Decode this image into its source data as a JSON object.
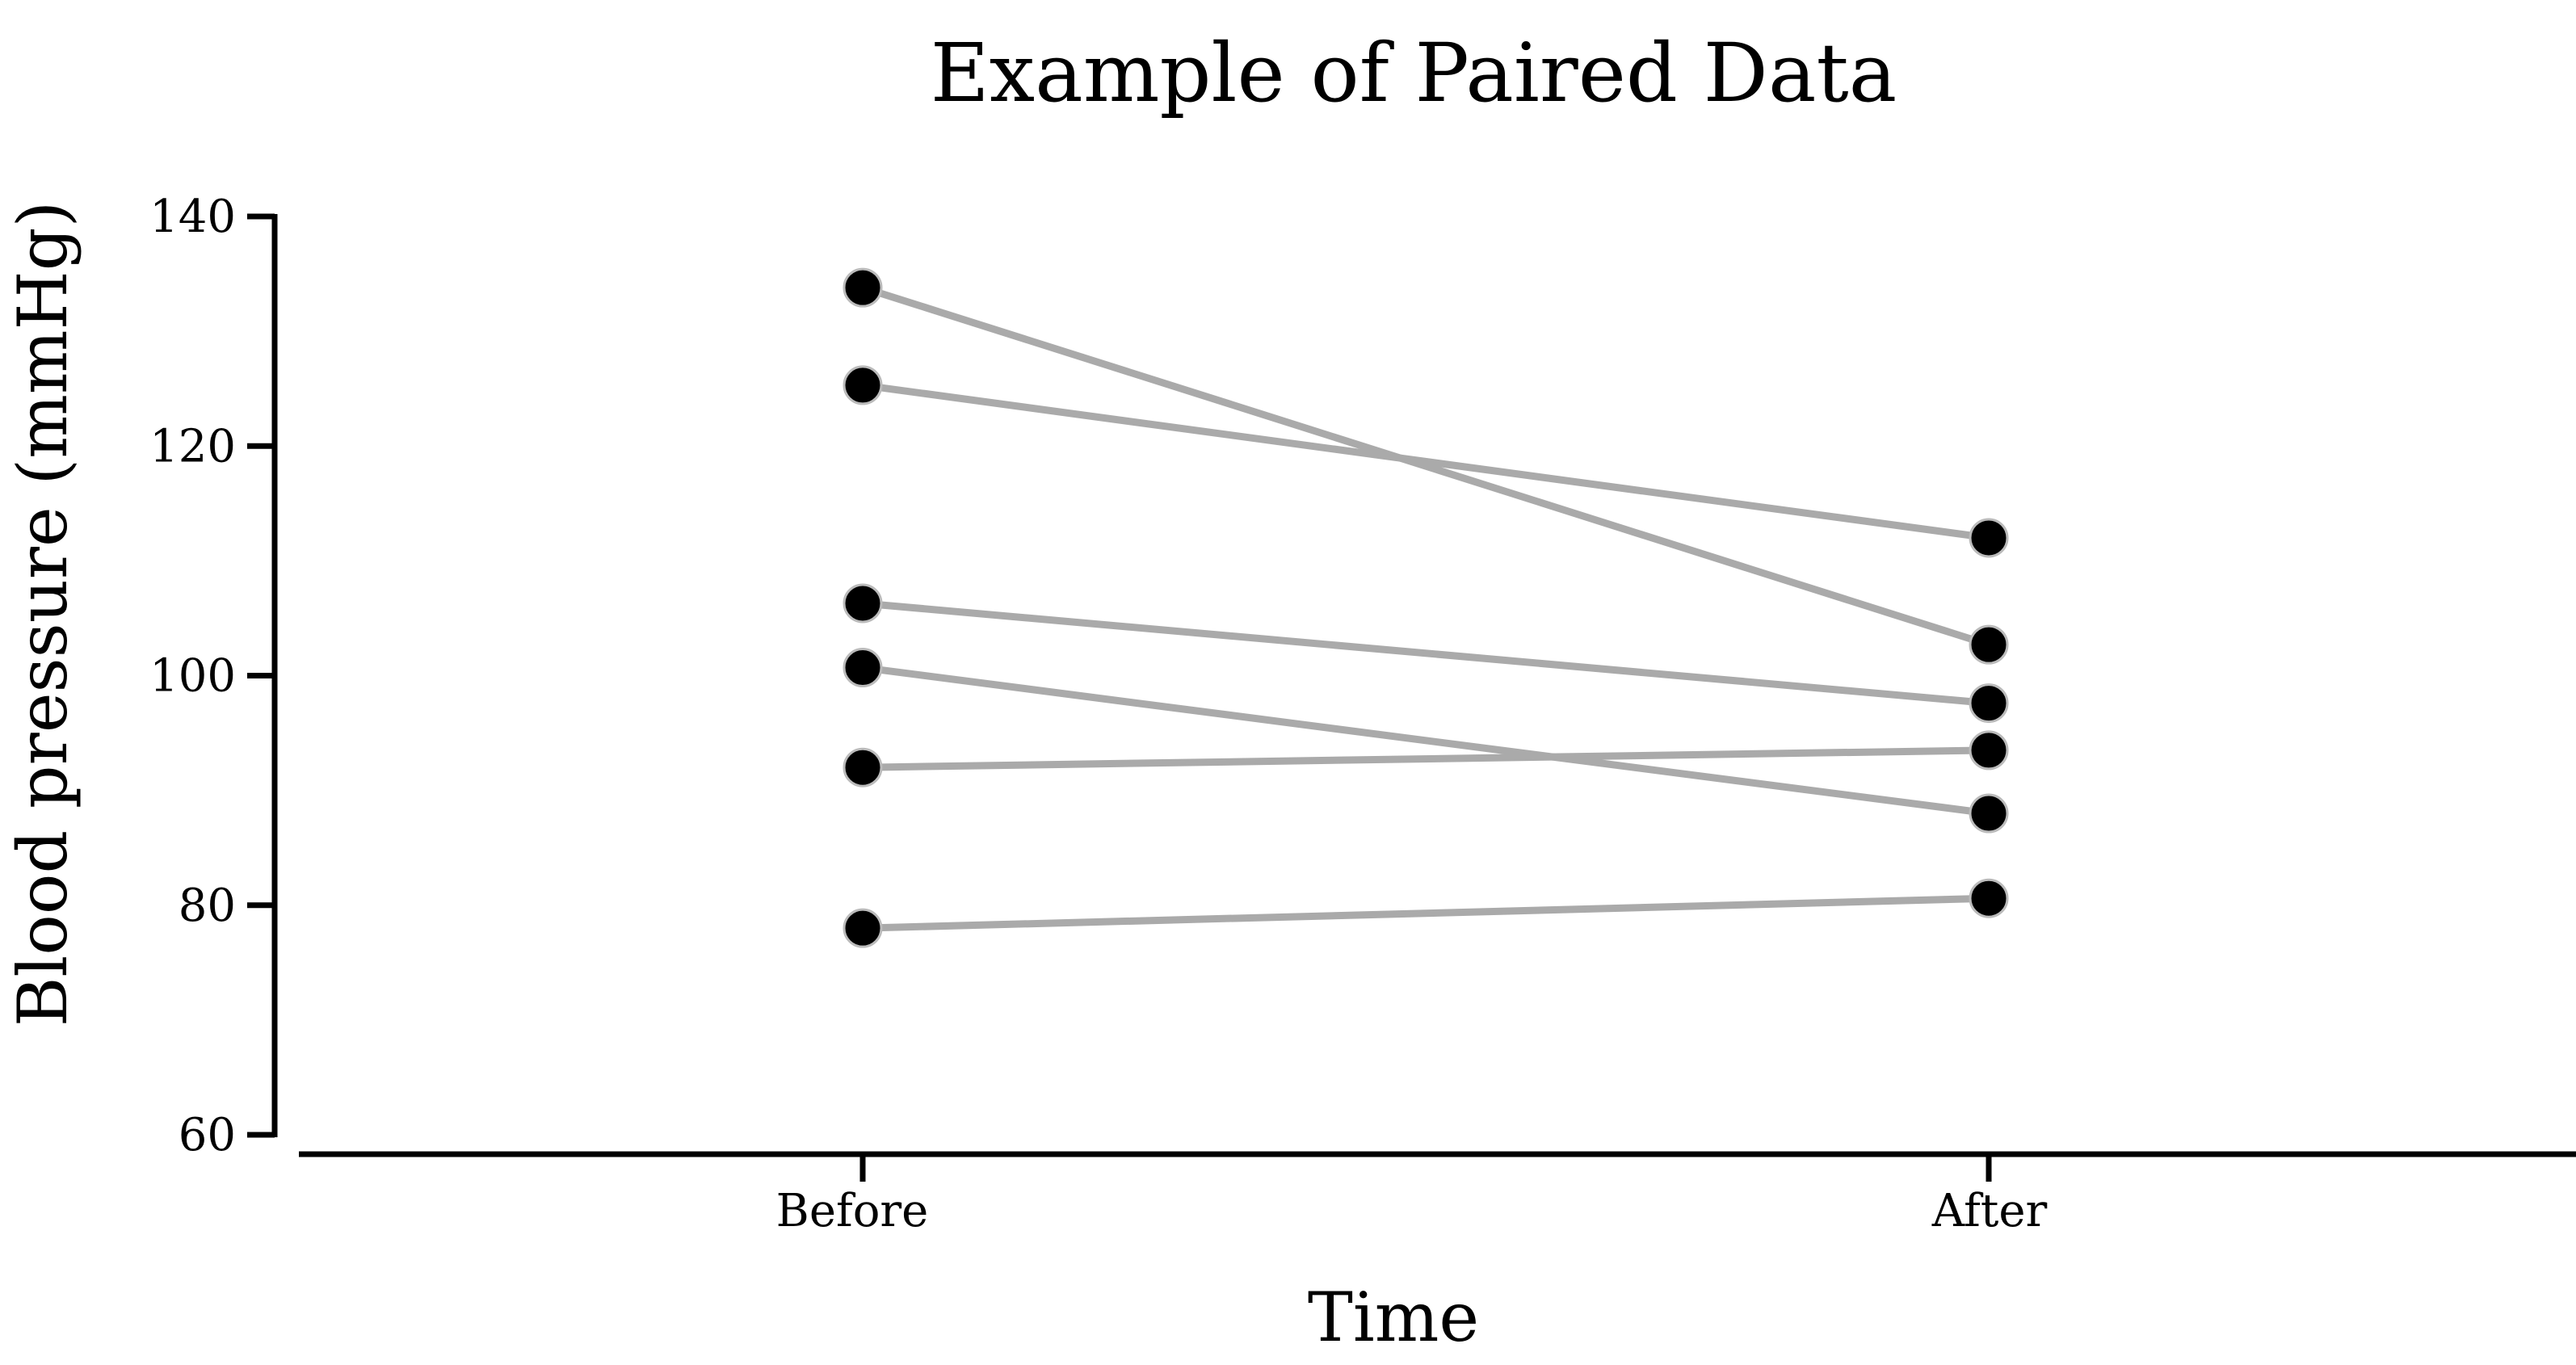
{
  "chart_data": {
    "type": "line",
    "title": "Example of Paired Data",
    "xlabel": "Time",
    "ylabel": "Blood pressure (mmHg)",
    "categories": [
      "Before",
      "After"
    ],
    "ylim": [
      60,
      140
    ],
    "yticks": [
      60,
      80,
      100,
      120,
      140
    ],
    "grid": false,
    "legend": "none",
    "line_color": "#aaaaaa",
    "point_color": "#000000",
    "pairs": [
      {
        "before": 133.8,
        "after": 102.7
      },
      {
        "before": 125.3,
        "after": 112.0
      },
      {
        "before": 106.3,
        "after": 97.6
      },
      {
        "before": 100.7,
        "after": 88.0
      },
      {
        "before": 92.0,
        "after": 93.5
      },
      {
        "before": 78.0,
        "after": 80.6
      }
    ]
  }
}
